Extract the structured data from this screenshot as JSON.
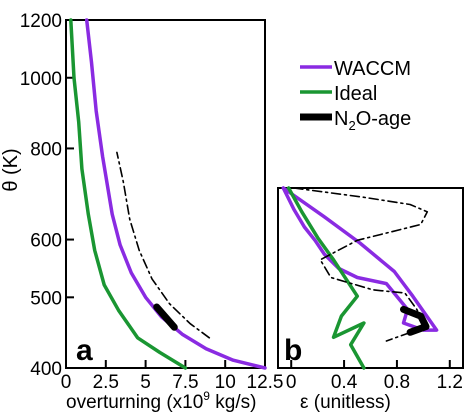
{
  "chart_data": [
    {
      "id": "a",
      "type": "line",
      "panel_label": "a",
      "xlabel": "overturning (x10",
      "xlabel_sup": "9",
      "xlabel_tail": " kg/s)",
      "ylabel": "θ (K)",
      "xlim": [
        0,
        12.5
      ],
      "xticks": [
        0,
        2.5,
        5,
        7.5,
        10,
        12.5
      ],
      "xtick_labels": [
        "0",
        "2.5",
        "5",
        "7.5",
        "10",
        "12.5"
      ],
      "ylim": [
        400,
        1200
      ],
      "yticks": [
        400,
        500,
        600,
        800,
        1000,
        1200
      ],
      "ytick_labels": [
        "400",
        "500",
        "600",
        "800",
        "1000",
        "1200"
      ],
      "y_scale": "log",
      "series": [
        {
          "name": "WACCM",
          "color": "#8a2be2",
          "style": "solid",
          "x": [
            12.5,
            10.5,
            8.8,
            7.3,
            6.0,
            5.0,
            4.1,
            3.4,
            2.9,
            2.3,
            1.9,
            1.6,
            1.3
          ],
          "y": [
            400,
            410,
            425,
            445,
            470,
            500,
            540,
            590,
            650,
            780,
            900,
            1050,
            1200
          ]
        },
        {
          "name": "Ideal",
          "color": "#1a9632",
          "style": "solid",
          "x": [
            7.5,
            5.9,
            4.5,
            3.3,
            2.4,
            1.8,
            1.4,
            1.0,
            0.8,
            0.5,
            0.3
          ],
          "y": [
            400,
            420,
            440,
            480,
            520,
            580,
            650,
            750,
            870,
            1000,
            1200
          ]
        },
        {
          "name": "N2O-age",
          "color": "#000000",
          "style": "dashdot",
          "x": [
            9.0,
            7.8,
            6.5,
            5.4,
            4.6,
            4.0,
            3.6,
            3.2
          ],
          "y": [
            440,
            460,
            490,
            530,
            580,
            640,
            720,
            790
          ]
        },
        {
          "name": "N2O-age-thick",
          "color": "#000000",
          "style": "thick",
          "x": [
            6.8,
            5.7
          ],
          "y": [
            455,
            485
          ]
        }
      ]
    },
    {
      "id": "b",
      "type": "line",
      "panel_label": "b",
      "xlabel": "ε (unitless)",
      "xlim": [
        -0.1,
        1.3
      ],
      "xticks": [
        0,
        0.4,
        0.8,
        1.2
      ],
      "xtick_labels": [
        "0",
        "0.4",
        "0.8",
        "1.2"
      ],
      "ylim": [
        400,
        700
      ],
      "y_scale": "log",
      "series": [
        {
          "name": "WACCM",
          "color": "#8a2be2",
          "style": "solid",
          "x": [
            -0.06,
            0.25,
            0.52,
            0.78,
            0.92,
            1.1,
            1.0,
            0.85,
            0.88,
            0.72,
            0.5,
            0.36,
            0.25,
            0.18,
            0.1,
            0.02,
            -0.06
          ],
          "y": [
            700,
            640,
            590,
            540,
            500,
            450,
            450,
            460,
            480,
            520,
            530,
            545,
            570,
            595,
            620,
            655,
            700
          ]
        },
        {
          "name": "Ideal",
          "color": "#1a9632",
          "style": "solid",
          "x": [
            0.55,
            0.45,
            0.55,
            0.32,
            0.38,
            0.5,
            0.32,
            0.2,
            0.08,
            -0.02
          ],
          "y": [
            400,
            430,
            460,
            440,
            470,
            500,
            560,
            600,
            650,
            700
          ]
        },
        {
          "name": "N2O-age",
          "color": "#000000",
          "style": "dashdot",
          "x": [
            0.02,
            0.55,
            0.9,
            1.03,
            0.98,
            0.5,
            0.22,
            0.3,
            0.62,
            0.86,
            0.95,
            1.0,
            1.05,
            0.95,
            0.72
          ],
          "y": [
            700,
            680,
            665,
            650,
            625,
            595,
            560,
            530,
            510,
            505,
            480,
            460,
            455,
            450,
            435
          ]
        },
        {
          "name": "N2O-age-thick",
          "color": "#000000",
          "style": "thick",
          "x": [
            0.85,
            0.98,
            1.02,
            0.9
          ],
          "y": [
            480,
            470,
            455,
            447
          ]
        }
      ]
    }
  ],
  "legend": {
    "position": "top-right",
    "entries": [
      {
        "label": "WACCM",
        "color": "#8a2be2",
        "thick": false
      },
      {
        "label": "Ideal",
        "color": "#1a9632",
        "thick": false
      },
      {
        "label_main": "N",
        "label_sub": "2",
        "label_tail": "O-age",
        "color": "#000000",
        "thick": true
      }
    ]
  }
}
